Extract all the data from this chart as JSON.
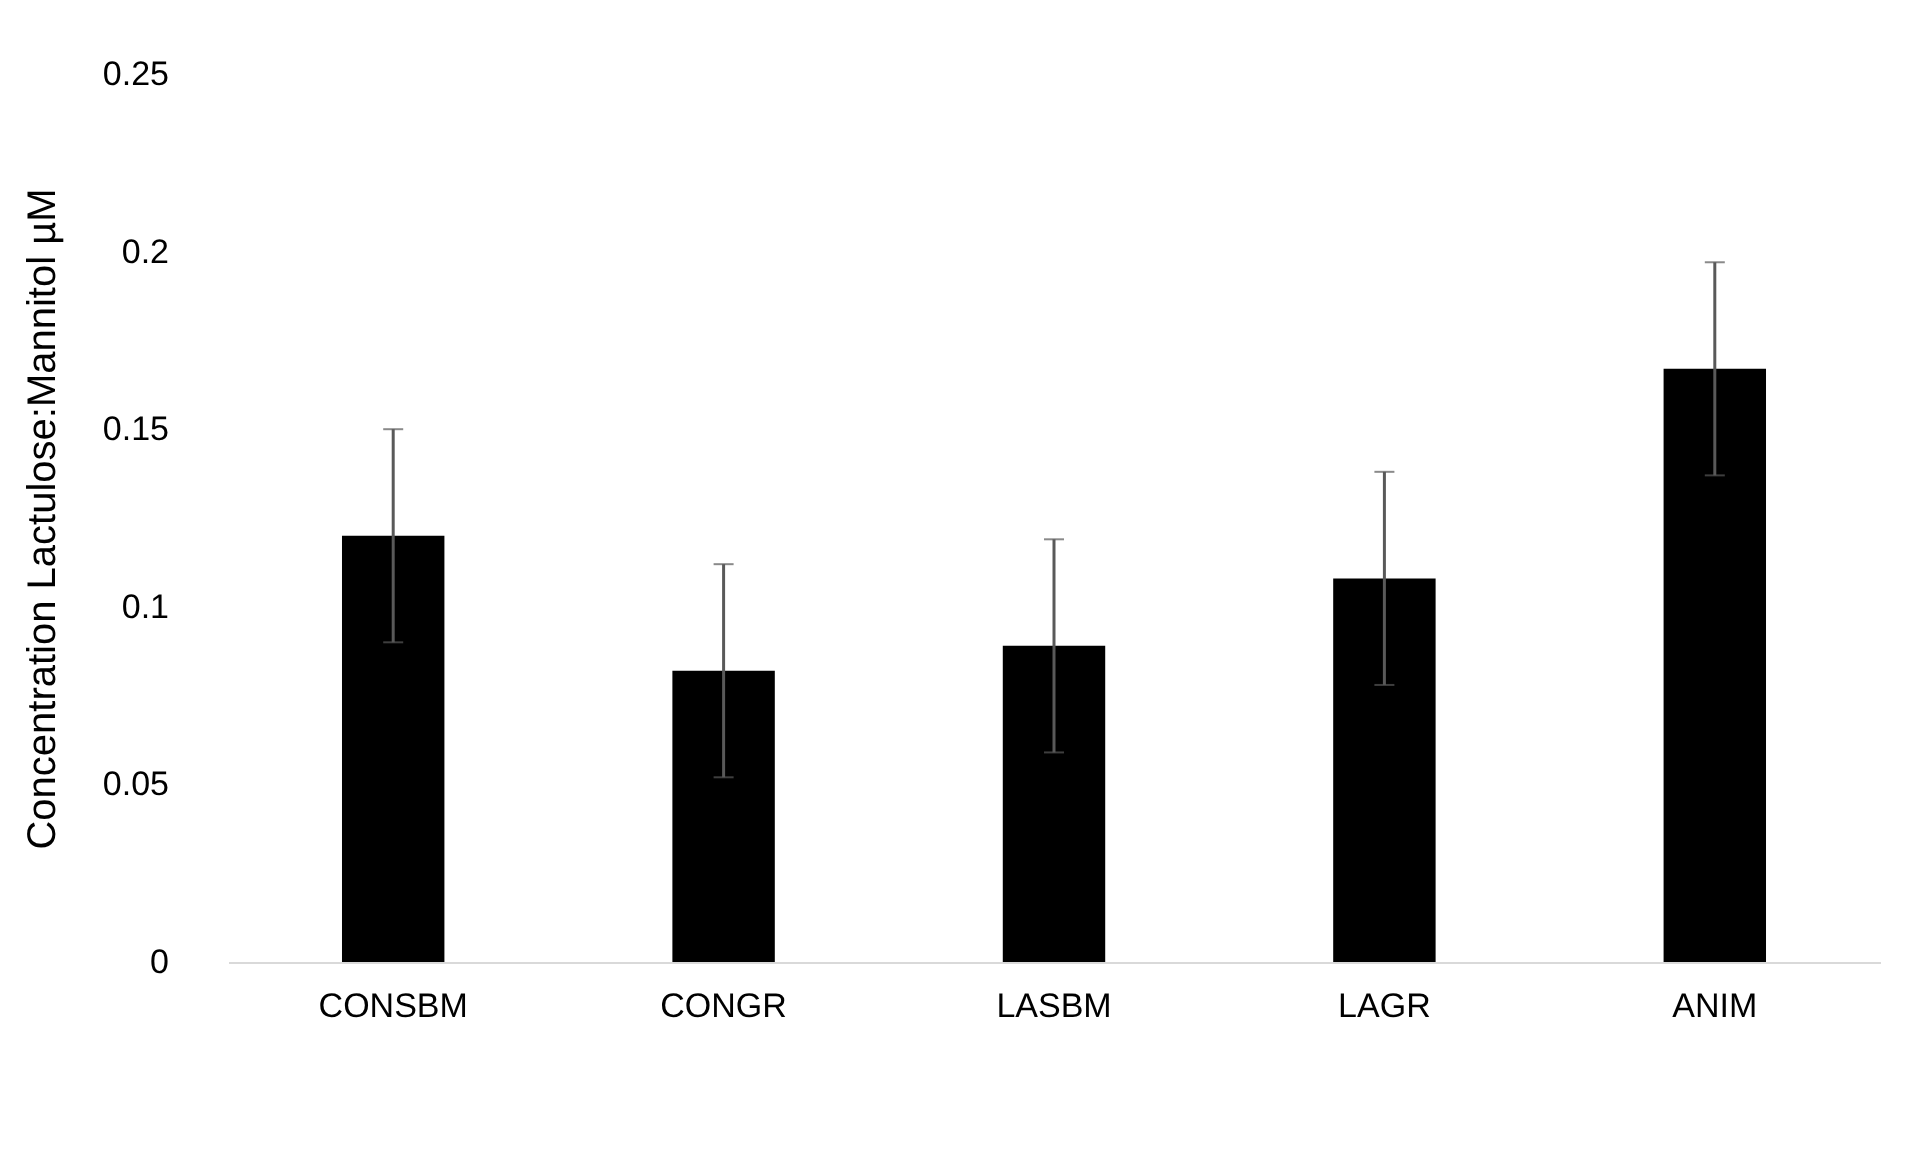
{
  "chart_data": {
    "type": "bar",
    "ylabel": "Concentration Lactulose:Mannitol µM",
    "categories": [
      "CONSBM",
      "CONGR",
      "LASBM",
      "LAGR",
      "ANIM"
    ],
    "values": [
      0.12,
      0.082,
      0.089,
      0.108,
      0.167
    ],
    "errors": [
      0.03,
      0.03,
      0.03,
      0.03,
      0.03
    ],
    "color": "#000000",
    "ylim": [
      0,
      0.25
    ],
    "yticks": [
      0,
      0.05,
      0.1,
      0.15,
      0.2,
      0.25
    ],
    "grid": false
  }
}
